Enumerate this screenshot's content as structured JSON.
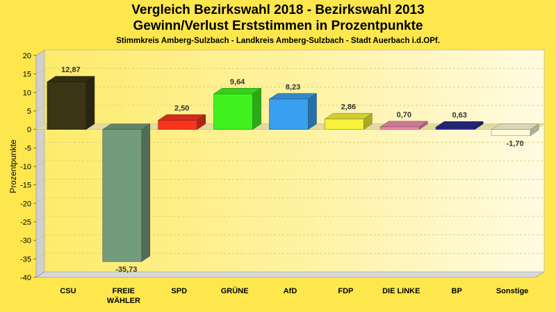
{
  "chart_data": {
    "type": "bar",
    "title": "Vergleich Bezirkswahl 2018 - Bezirkswahl 2013",
    "subtitle": "Gewinn/Verlust Erststimmen in Prozentpunkte",
    "caption": "Stimmkreis Amberg-Sulzbach - Landkreis Amberg-Sulzbach - Stadt Auerbach i.d.OPf.",
    "ylabel": "Prozentpunkte",
    "xlabel": "",
    "ylim": [
      -40,
      20
    ],
    "yticks": [
      20,
      15,
      10,
      5,
      0,
      -5,
      -10,
      -15,
      -20,
      -25,
      -30,
      -35,
      -40
    ],
    "grid": true,
    "categories": [
      [
        "CSU"
      ],
      [
        "FREIE",
        "WÄHLER"
      ],
      [
        "SPD"
      ],
      [
        "GRÜNE"
      ],
      [
        "AfD"
      ],
      [
        "FDP"
      ],
      [
        "DIE LINKE"
      ],
      [
        "BP"
      ],
      [
        "Sonstige"
      ]
    ],
    "values": [
      12.87,
      -35.73,
      2.5,
      9.64,
      8.23,
      2.86,
      0.7,
      0.63,
      -1.7
    ],
    "value_labels": [
      "12,87",
      "-35,73",
      "2,50",
      "9,64",
      "8,23",
      "2,86",
      "0,70",
      "0,63",
      "-1,70"
    ],
    "colors": [
      "#3b3516",
      "#739c7d",
      "#f8341e",
      "#3ff21e",
      "#3b9ff0",
      "#f7f33c",
      "#f08cb0",
      "#2c2c8c",
      "#fffbd9"
    ]
  }
}
